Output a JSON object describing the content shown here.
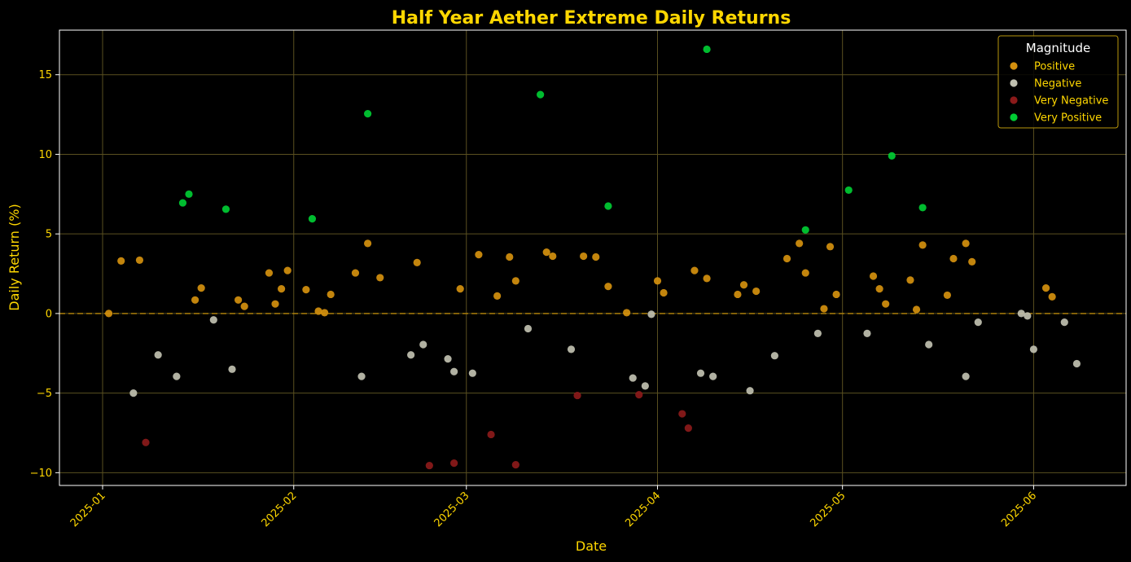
{
  "chart_data": {
    "type": "scatter",
    "title": "Half Year Aether Extreme Daily Returns",
    "xlabel": "Date",
    "ylabel": "Daily Return (%)",
    "xlim": [
      "2024-12-25",
      "2025-06-16"
    ],
    "ylim": [
      -10.8,
      17.8
    ],
    "x_ticks": [
      "2025-01-01",
      "2025-02-01",
      "2025-03-01",
      "2025-04-01",
      "2025-05-01",
      "2025-06-01"
    ],
    "x_tick_labels": [
      "2025-01",
      "2025-02",
      "2025-03",
      "2025-04",
      "2025-05",
      "2025-06"
    ],
    "y_ticks": [
      -10,
      -5,
      0,
      5,
      10,
      15
    ],
    "y_tick_labels": [
      "−10",
      "−5",
      "0",
      "5",
      "10",
      "15"
    ],
    "grid": true,
    "reference_line_y": 0,
    "legend": {
      "title": "Magnitude",
      "placement": "top-right"
    },
    "colors": {
      "background": "#000000",
      "text": "#ffd700",
      "grid": "#5a5020",
      "reference_line": "#b8860b"
    },
    "series": [
      {
        "name": "Positive",
        "color": "#d4900e",
        "x": [
          "2025-01-02",
          "2025-01-04",
          "2025-01-07",
          "2025-01-16",
          "2025-01-17",
          "2025-01-23",
          "2025-01-24",
          "2025-01-28",
          "2025-01-29",
          "2025-01-30",
          "2025-01-31",
          "2025-02-03",
          "2025-02-05",
          "2025-02-06",
          "2025-02-07",
          "2025-02-11",
          "2025-02-13",
          "2025-02-15",
          "2025-02-21",
          "2025-02-28",
          "2025-03-03",
          "2025-03-06",
          "2025-03-08",
          "2025-03-09",
          "2025-03-14",
          "2025-03-15",
          "2025-03-20",
          "2025-03-22",
          "2025-03-24",
          "2025-03-27",
          "2025-04-01",
          "2025-04-02",
          "2025-04-07",
          "2025-04-09",
          "2025-04-14",
          "2025-04-15",
          "2025-04-17",
          "2025-04-22",
          "2025-04-24",
          "2025-04-25",
          "2025-04-28",
          "2025-04-29",
          "2025-04-30",
          "2025-05-06",
          "2025-05-07",
          "2025-05-08",
          "2025-05-12",
          "2025-05-13",
          "2025-05-14",
          "2025-05-18",
          "2025-05-19",
          "2025-05-21",
          "2025-05-22",
          "2025-06-03",
          "2025-06-04"
        ],
        "y": [
          0.0,
          3.3,
          3.35,
          0.85,
          1.6,
          0.85,
          0.45,
          2.55,
          0.6,
          1.55,
          2.7,
          1.5,
          0.15,
          0.05,
          1.2,
          2.55,
          4.4,
          2.25,
          3.2,
          1.55,
          3.7,
          1.1,
          3.55,
          2.05,
          3.85,
          3.6,
          3.6,
          3.55,
          1.7,
          0.05,
          2.05,
          1.3,
          2.7,
          2.2,
          1.2,
          1.8,
          1.4,
          3.45,
          4.4,
          2.55,
          0.3,
          4.2,
          1.2,
          2.35,
          1.55,
          0.6,
          2.1,
          0.25,
          4.3,
          1.15,
          3.45,
          4.4,
          3.25,
          1.6,
          1.05
        ]
      },
      {
        "name": "Negative",
        "color": "#c0c0b0",
        "x": [
          "2025-01-06",
          "2025-01-10",
          "2025-01-13",
          "2025-01-19",
          "2025-01-22",
          "2025-02-12",
          "2025-02-20",
          "2025-02-22",
          "2025-02-26",
          "2025-02-27",
          "2025-03-02",
          "2025-03-11",
          "2025-03-18",
          "2025-03-28",
          "2025-03-30",
          "2025-03-31",
          "2025-04-08",
          "2025-04-10",
          "2025-04-16",
          "2025-04-20",
          "2025-04-27",
          "2025-05-05",
          "2025-05-15",
          "2025-05-21",
          "2025-05-23",
          "2025-05-30",
          "2025-05-31",
          "2025-06-01",
          "2025-06-06",
          "2025-06-08"
        ],
        "y": [
          -5.0,
          -2.6,
          -3.95,
          -0.4,
          -3.5,
          -3.95,
          -2.6,
          -1.95,
          -2.85,
          -3.65,
          -3.75,
          -0.95,
          -2.25,
          -4.05,
          -4.55,
          -0.05,
          -3.75,
          -3.95,
          -4.85,
          -2.65,
          -1.25,
          -1.25,
          -1.95,
          -3.95,
          -0.55,
          0.0,
          -0.15,
          -2.25,
          -0.55,
          -3.15
        ]
      },
      {
        "name": "Very Negative",
        "color": "#8b1a1a",
        "x": [
          "2025-01-08",
          "2025-02-23",
          "2025-02-27",
          "2025-03-05",
          "2025-03-09",
          "2025-03-19",
          "2025-03-29",
          "2025-04-05",
          "2025-04-06"
        ],
        "y": [
          -8.1,
          -9.55,
          -9.4,
          -7.6,
          -9.5,
          -5.15,
          -5.1,
          -6.3,
          -7.2
        ]
      },
      {
        "name": "Very Positive",
        "color": "#00cc33",
        "x": [
          "2025-01-14",
          "2025-01-15",
          "2025-01-21",
          "2025-02-04",
          "2025-02-13",
          "2025-03-13",
          "2025-03-24",
          "2025-04-09",
          "2025-04-25",
          "2025-05-02",
          "2025-05-09",
          "2025-05-14"
        ],
        "y": [
          6.95,
          7.5,
          6.55,
          5.95,
          12.55,
          13.75,
          6.75,
          16.6,
          5.25,
          7.75,
          9.9,
          6.65
        ]
      }
    ]
  }
}
